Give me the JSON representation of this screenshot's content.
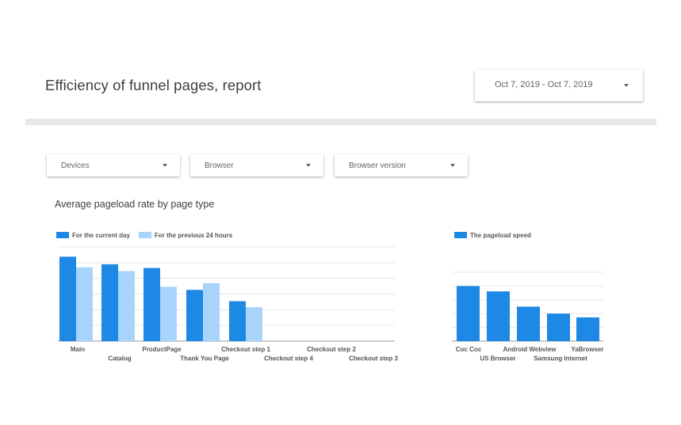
{
  "report": {
    "title": "Efficiency of funnel pages, report"
  },
  "date_range": {
    "value": "Oct 7, 2019 - Oct 7, 2019"
  },
  "filters": [
    {
      "label": "Devices"
    },
    {
      "label": "Browser"
    },
    {
      "label": "Browser version"
    }
  ],
  "section": {
    "title": "Average pageload rate by page type"
  },
  "colors": {
    "primary": "#1e88e5",
    "secondary": "#a8d3fb",
    "grid": "#e6e6e6",
    "axis": "#999999"
  },
  "chart_data": [
    {
      "type": "bar",
      "categories": [
        "Main",
        "Catalog",
        "ProductPage",
        "Thank You Page",
        "Checkout step 1",
        "Checkout step 4",
        "Checkout step 2",
        "Checkout step 3"
      ],
      "series": [
        {
          "name": "For the current day",
          "values": [
            11.2,
            10.2,
            9.7,
            6.8,
            5.3,
            0,
            0,
            0
          ]
        },
        {
          "name": "For the previous 24 hours",
          "values": [
            9.8,
            9.3,
            7.2,
            7.7,
            4.5,
            0,
            0,
            0
          ]
        }
      ],
      "ylim": [
        0,
        12.5
      ],
      "grid": true,
      "legend_position": "top-left"
    },
    {
      "type": "bar",
      "categories": [
        "Coc Coc",
        "US Browser",
        "Android Webview",
        "Samsung Internet",
        "YaBrowser"
      ],
      "series": [
        {
          "name": "The pageload speed",
          "values": [
            7.2,
            6.5,
            4.5,
            3.6,
            3.1
          ]
        }
      ],
      "ylim": [
        0,
        9
      ],
      "grid": true,
      "legend_position": "top-left"
    }
  ]
}
